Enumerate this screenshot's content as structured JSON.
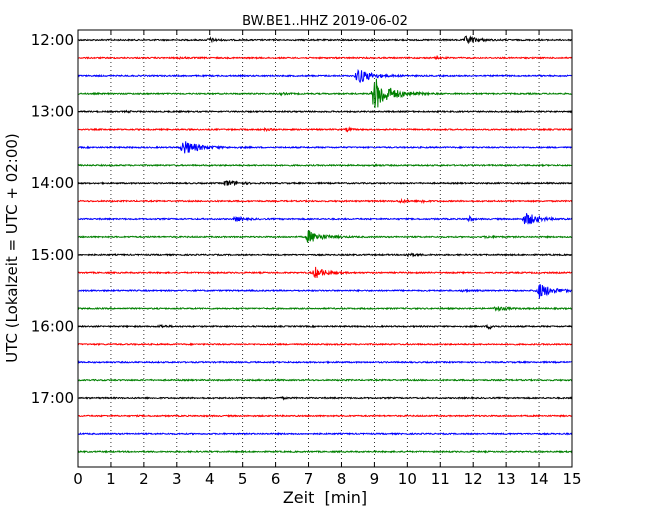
{
  "chart_data": {
    "type": "line",
    "title": "BW.BE1..HHZ 2019-06-02",
    "xlabel": "Zeit  [min]",
    "ylabel": "UTC (Lokalzeit = UTC + 02:00)",
    "xlim": [
      0,
      15
    ],
    "x_ticks": [
      0,
      1,
      2,
      3,
      4,
      5,
      6,
      7,
      8,
      9,
      10,
      11,
      12,
      13,
      14,
      15
    ],
    "y_tick_labels": [
      "12:00",
      "13:00",
      "14:00",
      "15:00",
      "16:00",
      "17:00"
    ],
    "grid": "vertical dotted",
    "trace_colors": [
      "#000000",
      "#ff0000",
      "#0000ff",
      "#008000"
    ],
    "traces": [
      {
        "start": "12:00",
        "events": [
          {
            "t": 4.0,
            "amp": 0.25,
            "dur": 0.3
          },
          {
            "t": 11.8,
            "amp": 0.5,
            "dur": 0.5
          }
        ]
      },
      {
        "start": "12:15",
        "events": [
          {
            "t": 3.1,
            "amp": 0.08,
            "dur": 0.3
          },
          {
            "t": 10.9,
            "amp": 0.08,
            "dur": 0.3
          }
        ]
      },
      {
        "start": "12:30",
        "events": [
          {
            "t": 8.5,
            "amp": 1.0,
            "dur": 0.6
          }
        ]
      },
      {
        "start": "12:45",
        "events": [
          {
            "t": 9.0,
            "amp": 2.2,
            "dur": 0.7
          },
          {
            "t": 6.2,
            "amp": 0.1,
            "dur": 0.3
          }
        ]
      },
      {
        "start": "13:00",
        "events": [
          {
            "t": 1.5,
            "amp": 0.06,
            "dur": 0.3
          }
        ]
      },
      {
        "start": "13:15",
        "events": [
          {
            "t": 8.2,
            "amp": 0.3,
            "dur": 0.1
          },
          {
            "t": 5.7,
            "amp": 0.1,
            "dur": 0.3
          }
        ]
      },
      {
        "start": "13:30",
        "events": [
          {
            "t": 3.2,
            "amp": 0.9,
            "dur": 0.7
          }
        ]
      },
      {
        "start": "13:45",
        "events": [
          {
            "t": 9.0,
            "amp": 0.05,
            "dur": 0.3
          }
        ]
      },
      {
        "start": "14:00",
        "events": [
          {
            "t": 4.5,
            "amp": 0.4,
            "dur": 0.5
          }
        ]
      },
      {
        "start": "14:15",
        "events": [
          {
            "t": 9.8,
            "amp": 0.2,
            "dur": 0.3
          },
          {
            "t": 10.5,
            "amp": 0.25,
            "dur": 0.1
          }
        ]
      },
      {
        "start": "14:30",
        "events": [
          {
            "t": 4.8,
            "amp": 0.3,
            "dur": 0.4
          },
          {
            "t": 11.9,
            "amp": 0.4,
            "dur": 0.1
          },
          {
            "t": 13.6,
            "amp": 0.9,
            "dur": 0.5
          }
        ]
      },
      {
        "start": "14:45",
        "events": [
          {
            "t": 7.0,
            "amp": 0.8,
            "dur": 0.6
          },
          {
            "t": 12.4,
            "amp": 0.1,
            "dur": 0.4
          }
        ]
      },
      {
        "start": "15:00",
        "events": [
          {
            "t": 10.0,
            "amp": 0.2,
            "dur": 0.4
          }
        ]
      },
      {
        "start": "15:15",
        "events": [
          {
            "t": 7.2,
            "amp": 0.7,
            "dur": 0.5
          }
        ]
      },
      {
        "start": "15:30",
        "events": [
          {
            "t": 14.0,
            "amp": 1.0,
            "dur": 0.6
          },
          {
            "t": 11.7,
            "amp": 0.1,
            "dur": 0.3
          }
        ]
      },
      {
        "start": "15:45",
        "events": [
          {
            "t": 12.7,
            "amp": 0.3,
            "dur": 0.4
          }
        ]
      },
      {
        "start": "16:00",
        "events": [
          {
            "t": 2.5,
            "amp": 0.15,
            "dur": 0.3
          },
          {
            "t": 12.5,
            "amp": 0.3,
            "dur": 0.2
          }
        ]
      },
      {
        "start": "16:15",
        "events": []
      },
      {
        "start": "16:30",
        "events": []
      },
      {
        "start": "16:45",
        "events": []
      },
      {
        "start": "17:00",
        "events": [
          {
            "t": 6.2,
            "amp": 0.08,
            "dur": 0.3
          }
        ]
      },
      {
        "start": "17:15",
        "events": []
      },
      {
        "start": "17:30",
        "events": []
      },
      {
        "start": "17:45",
        "events": []
      }
    ]
  }
}
